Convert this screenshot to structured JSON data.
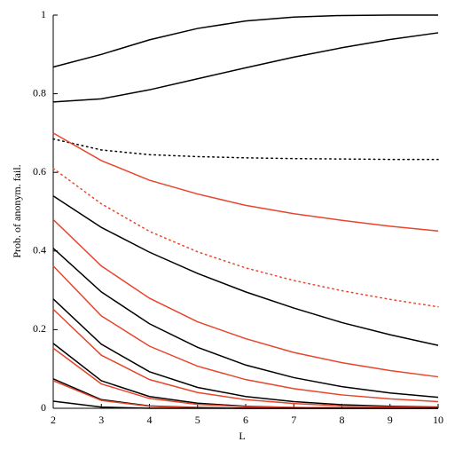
{
  "chart_data": {
    "type": "line",
    "x_label": "L",
    "y_label": "Prob. of anonym. fail.",
    "x": [
      2,
      3,
      4,
      5,
      6,
      7,
      8,
      9,
      10
    ],
    "xlim": [
      2,
      10
    ],
    "xticks": [
      2,
      3,
      4,
      5,
      6,
      7,
      8,
      9,
      10
    ],
    "ylim": [
      0,
      1
    ],
    "yticks": [
      0,
      0.2,
      0.4,
      0.6,
      0.8,
      1
    ],
    "series": [
      {
        "color": "#000000",
        "style": "solid",
        "values": [
          0.868,
          0.9,
          0.937,
          0.966,
          0.985,
          0.995,
          0.999,
          1,
          1
        ]
      },
      {
        "color": "#000000",
        "style": "solid",
        "values": [
          0.779,
          0.787,
          0.81,
          0.838,
          0.866,
          0.893,
          0.917,
          0.938,
          0.955
        ]
      },
      {
        "color": "#000000",
        "style": "dotted",
        "values": [
          0.685,
          0.657,
          0.645,
          0.64,
          0.637,
          0.635,
          0.634,
          0.633,
          0.633
        ]
      },
      {
        "color": "#e8452c",
        "style": "solid",
        "values": [
          0.7,
          0.63,
          0.58,
          0.545,
          0.516,
          0.495,
          0.478,
          0.463,
          0.451
        ]
      },
      {
        "color": "#e8452c",
        "style": "dotted",
        "values": [
          0.61,
          0.52,
          0.45,
          0.398,
          0.357,
          0.325,
          0.299,
          0.277,
          0.258
        ]
      },
      {
        "color": "#000000",
        "style": "solid",
        "values": [
          0.54,
          0.46,
          0.397,
          0.343,
          0.296,
          0.255,
          0.218,
          0.187,
          0.16
        ]
      },
      {
        "color": "#e8452c",
        "style": "solid",
        "values": [
          0.48,
          0.362,
          0.28,
          0.22,
          0.177,
          0.142,
          0.116,
          0.096,
          0.08
        ]
      },
      {
        "color": "#000000",
        "style": "solid",
        "values": [
          0.407,
          0.296,
          0.215,
          0.155,
          0.11,
          0.078,
          0.055,
          0.039,
          0.028
        ]
      },
      {
        "color": "#e8452c",
        "style": "solid",
        "values": [
          0.362,
          0.235,
          0.158,
          0.107,
          0.073,
          0.05,
          0.034,
          0.024,
          0.017
        ]
      },
      {
        "color": "#000000",
        "style": "solid",
        "values": [
          0.278,
          0.163,
          0.093,
          0.053,
          0.03,
          0.017,
          0.009,
          0.005,
          0.003
        ]
      },
      {
        "color": "#e8452c",
        "style": "solid",
        "values": [
          0.252,
          0.135,
          0.073,
          0.04,
          0.022,
          0.012,
          0.006,
          0.003,
          0.002
        ]
      },
      {
        "color": "#000000",
        "style": "solid",
        "values": [
          0.165,
          0.07,
          0.03,
          0.013,
          0.005,
          0.002,
          0.001,
          0,
          0
        ]
      },
      {
        "color": "#e8452c",
        "style": "solid",
        "values": [
          0.153,
          0.062,
          0.025,
          0.01,
          0.004,
          0.002,
          0.001,
          0,
          0
        ]
      },
      {
        "color": "#000000",
        "style": "solid",
        "values": [
          0.075,
          0.022,
          0.006,
          0.002,
          0,
          0,
          0,
          0,
          0
        ]
      },
      {
        "color": "#e8452c",
        "style": "solid",
        "values": [
          0.07,
          0.02,
          0.005,
          0.001,
          0,
          0,
          0,
          0,
          0
        ]
      },
      {
        "color": "#000000",
        "style": "solid",
        "values": [
          0.018,
          0.003,
          0,
          0,
          0,
          0,
          0,
          0,
          0
        ]
      }
    ]
  }
}
